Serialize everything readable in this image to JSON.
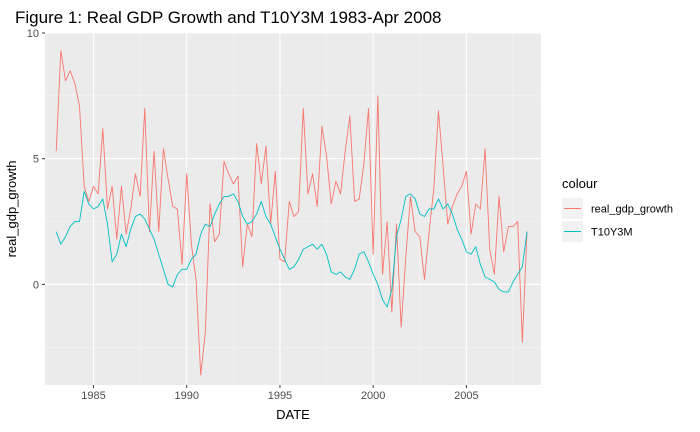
{
  "chart_data": {
    "type": "line",
    "title": "Figure 1: Real GDP Growth and T10Y3M 1983-Apr 2008",
    "xlabel": "DATE",
    "ylabel": "real_gdp_growth",
    "xlim": [
      1982.4,
      2009.0
    ],
    "ylim": [
      -4.0,
      10.0
    ],
    "x_ticks": [
      1985,
      1990,
      1995,
      2000,
      2005
    ],
    "x_tick_labels": [
      "1985",
      "1990",
      "1995",
      "2000",
      "2005"
    ],
    "y_ticks": [
      0,
      5,
      10
    ],
    "y_tick_labels": [
      "0",
      "5",
      "10"
    ],
    "grid": true,
    "panel_background": "#ebebeb",
    "legend": {
      "title": "colour",
      "position": "right"
    },
    "x": [
      1983.0,
      1983.25,
      1983.5,
      1983.75,
      1984.0,
      1984.25,
      1984.5,
      1984.75,
      1985.0,
      1985.25,
      1985.5,
      1985.75,
      1986.0,
      1986.25,
      1986.5,
      1986.75,
      1987.0,
      1987.25,
      1987.5,
      1987.75,
      1988.0,
      1988.25,
      1988.5,
      1988.75,
      1989.0,
      1989.25,
      1989.5,
      1989.75,
      1990.0,
      1990.25,
      1990.5,
      1990.75,
      1991.0,
      1991.25,
      1991.5,
      1991.75,
      1992.0,
      1992.25,
      1992.5,
      1992.75,
      1993.0,
      1993.25,
      1993.5,
      1993.75,
      1994.0,
      1994.25,
      1994.5,
      1994.75,
      1995.0,
      1995.25,
      1995.5,
      1995.75,
      1996.0,
      1996.25,
      1996.5,
      1996.75,
      1997.0,
      1997.25,
      1997.5,
      1997.75,
      1998.0,
      1998.25,
      1998.5,
      1998.75,
      1999.0,
      1999.25,
      1999.5,
      1999.75,
      2000.0,
      2000.25,
      2000.5,
      2000.75,
      2001.0,
      2001.25,
      2001.5,
      2001.75,
      2002.0,
      2002.25,
      2002.5,
      2002.75,
      2003.0,
      2003.25,
      2003.5,
      2003.75,
      2004.0,
      2004.25,
      2004.5,
      2004.75,
      2005.0,
      2005.25,
      2005.5,
      2005.75,
      2006.0,
      2006.25,
      2006.5,
      2006.75,
      2007.0,
      2007.25,
      2007.5,
      2007.75,
      2008.0,
      2008.25
    ],
    "series": [
      {
        "name": "real_gdp_growth",
        "color": "#f8766d",
        "values": [
          5.3,
          9.3,
          8.1,
          8.5,
          8.0,
          7.1,
          3.9,
          3.3,
          3.9,
          3.6,
          6.2,
          3.0,
          3.9,
          1.8,
          3.9,
          2.0,
          3.0,
          4.4,
          3.5,
          7.0,
          2.1,
          5.3,
          2.1,
          5.4,
          4.2,
          3.1,
          3.0,
          0.8,
          4.4,
          1.6,
          0.2,
          -3.6,
          -1.9,
          3.2,
          1.7,
          2.0,
          4.9,
          4.4,
          4.0,
          4.3,
          0.7,
          2.4,
          1.9,
          5.6,
          4.0,
          5.5,
          2.4,
          4.5,
          1.0,
          0.9,
          3.3,
          2.7,
          2.9,
          7.0,
          3.6,
          4.4,
          3.1,
          6.3,
          5.1,
          3.2,
          4.1,
          3.6,
          5.3,
          6.7,
          3.3,
          3.4,
          4.8,
          7.0,
          1.2,
          7.5,
          0.4,
          2.5,
          -1.1,
          2.4,
          -1.7,
          1.1,
          3.5,
          2.1,
          1.9,
          0.2,
          2.1,
          3.8,
          6.9,
          4.7,
          2.4,
          3.1,
          3.6,
          3.9,
          4.5,
          2.0,
          3.2,
          3.0,
          5.4,
          1.4,
          0.4,
          3.5,
          1.3,
          2.3,
          2.3,
          2.5,
          -2.3,
          2.1
        ]
      },
      {
        "name": "T10Y3M",
        "color": "#00bfc4",
        "values": [
          2.1,
          1.6,
          1.9,
          2.3,
          2.5,
          2.5,
          3.7,
          3.2,
          3.0,
          3.1,
          3.4,
          2.4,
          0.9,
          1.2,
          2.0,
          1.5,
          2.2,
          2.7,
          2.8,
          2.6,
          2.2,
          1.8,
          1.2,
          0.6,
          0.0,
          -0.1,
          0.4,
          0.6,
          0.6,
          1.0,
          1.2,
          2.0,
          2.4,
          2.3,
          2.8,
          3.2,
          3.5,
          3.5,
          3.6,
          3.3,
          2.7,
          2.4,
          2.5,
          2.8,
          3.3,
          2.7,
          2.4,
          1.9,
          1.4,
          1.0,
          0.6,
          0.7,
          1.0,
          1.4,
          1.5,
          1.6,
          1.4,
          1.6,
          1.2,
          0.5,
          0.4,
          0.5,
          0.3,
          0.2,
          0.6,
          1.2,
          1.3,
          0.9,
          0.4,
          0.0,
          -0.6,
          -0.9,
          -0.2,
          1.9,
          2.6,
          3.5,
          3.6,
          3.4,
          2.8,
          2.7,
          3.0,
          3.0,
          3.4,
          3.0,
          3.2,
          2.8,
          2.2,
          1.8,
          1.3,
          1.2,
          1.5,
          0.8,
          0.3,
          0.2,
          0.1,
          -0.2,
          -0.3,
          -0.3,
          0.1,
          0.4,
          0.7,
          2.1
        ]
      }
    ]
  }
}
